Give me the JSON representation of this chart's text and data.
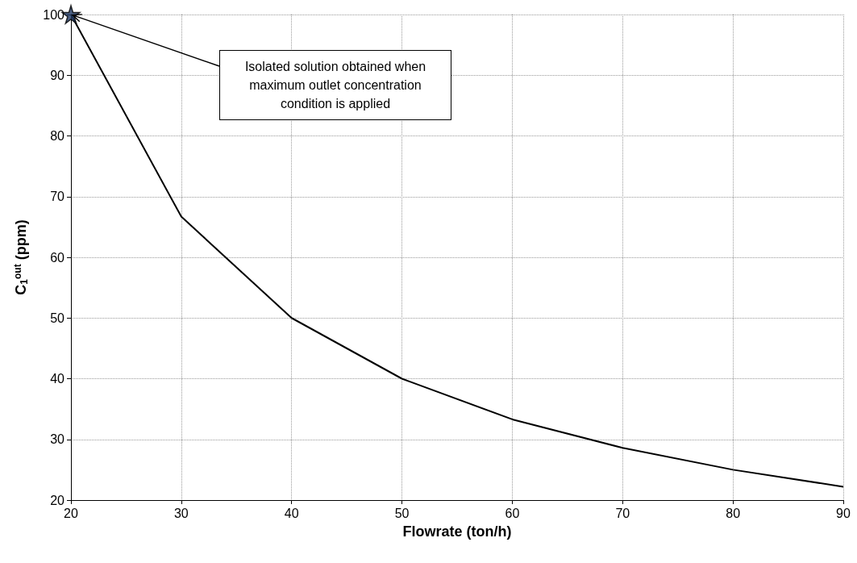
{
  "chart_data": {
    "type": "line",
    "xlabel": "Flowrate (ton/h)",
    "ylabel": "C$_{1}$$^{out}$ (ppm)",
    "series": [
      {
        "color": "#000000",
        "marker": "none",
        "line_style": "solid",
        "x": [
          20,
          30,
          40,
          50,
          60,
          70,
          80,
          90
        ],
        "values": [
          100,
          66.7,
          50,
          40,
          33.3,
          28.6,
          25,
          22.2
        ]
      },
      {
        "type": "scatter",
        "color": "#1f3864",
        "marker": "star",
        "x": [
          20
        ],
        "values": [
          100
        ]
      }
    ],
    "annotations": [
      "Isolated solution obtained when maximum outlet concentration condition is applied"
    ],
    "xlim": [
      20,
      90
    ],
    "xticks": [
      20,
      30,
      40,
      50,
      60,
      70,
      80,
      90
    ],
    "ylim": [
      20,
      100
    ],
    "yticks": [
      20,
      30,
      40,
      50,
      60,
      70,
      80,
      90,
      100
    ],
    "grid": true
  }
}
